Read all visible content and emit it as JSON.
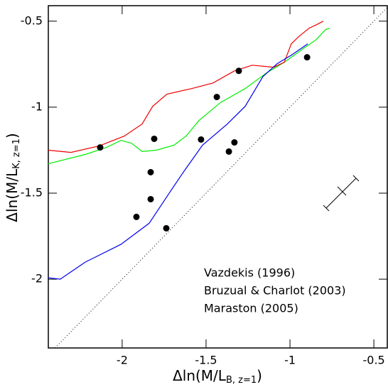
{
  "chart_data": {
    "type": "line",
    "xlabel": {
      "main": "Δln(M/L",
      "sub": "B, z=1",
      "close": ")"
    },
    "ylabel": {
      "main": "Δln(M/L",
      "sub": "K, z=1",
      "close": ")"
    },
    "xlim": [
      -2.44,
      -0.42
    ],
    "ylim": [
      -2.4,
      -0.41
    ],
    "xticks": [
      -2,
      -1.5,
      -1,
      -0.5
    ],
    "yticks": [
      -2,
      -1.5,
      -1,
      -0.5
    ],
    "series": [
      {
        "name": "Vazdekis (1996)",
        "color": "#00ee00",
        "x": [
          -2.441,
          -2.22,
          -2.093,
          -2.008,
          -1.945,
          -1.881,
          -1.797,
          -1.691,
          -1.619,
          -1.542,
          -1.415,
          -1.267,
          -1.14,
          -1.034,
          -0.928,
          -0.843,
          -0.788,
          -0.763
        ],
        "y": [
          -1.329,
          -1.275,
          -1.234,
          -1.193,
          -1.209,
          -1.258,
          -1.25,
          -1.221,
          -1.168,
          -1.077,
          -0.974,
          -0.892,
          -0.801,
          -0.739,
          -0.665,
          -0.607,
          -0.549,
          -0.541
        ]
      },
      {
        "name": "Bruzual & Charlot (2003)",
        "color": "#ee0000",
        "x": [
          -2.441,
          -2.305,
          -2.136,
          -1.987,
          -1.881,
          -1.818,
          -1.733,
          -1.585,
          -1.458,
          -1.331,
          -1.225,
          -1.097,
          -1.034,
          -0.992,
          -0.949,
          -0.886,
          -0.843,
          -0.801
        ],
        "y": [
          -1.25,
          -1.263,
          -1.225,
          -1.168,
          -1.098,
          -0.995,
          -0.924,
          -0.892,
          -0.859,
          -0.789,
          -0.756,
          -0.768,
          -0.739,
          -0.632,
          -0.591,
          -0.541,
          -0.521,
          -0.5
        ]
      },
      {
        "name": "Maraston (2005)",
        "color": "#0000ee",
        "x": [
          -2.441,
          -2.369,
          -2.22,
          -2.008,
          -1.839,
          -1.712,
          -1.627,
          -1.521,
          -1.373,
          -1.267,
          -1.161,
          -1.076,
          -0.992,
          -0.894
        ],
        "y": [
          -1.992,
          -2.0,
          -1.901,
          -1.798,
          -1.675,
          -1.489,
          -1.366,
          -1.221,
          -1.098,
          -0.995,
          -0.822,
          -0.747,
          -0.698,
          -0.632
        ]
      }
    ],
    "points": {
      "color": "#000000",
      "x": [
        -2.131,
        -1.809,
        -1.83,
        -1.83,
        -1.915,
        -1.737,
        -1.53,
        -1.436,
        -1.364,
        -1.331,
        -1.305,
        -0.898
      ],
      "y": [
        -1.234,
        -1.184,
        -1.378,
        -1.535,
        -1.638,
        -1.704,
        -1.188,
        -0.941,
        -1.258,
        -1.205,
        -0.789,
        -0.71
      ]
    }
  }
}
